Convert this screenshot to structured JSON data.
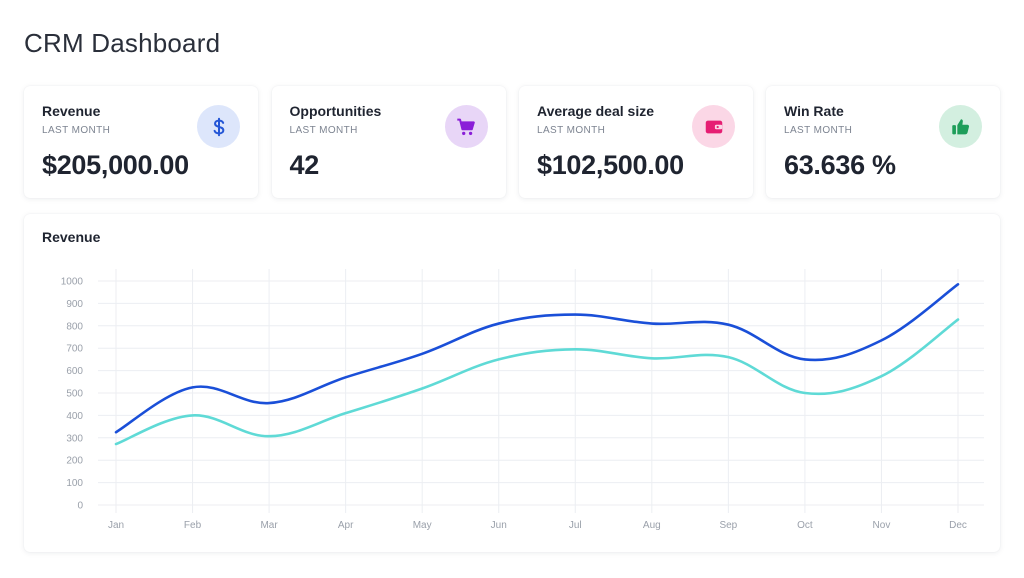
{
  "header": {
    "title": "CRM Dashboard"
  },
  "cards": [
    {
      "title": "Revenue",
      "subtitle": "LAST MONTH",
      "value": "$205,000.00",
      "icon": "dollar-icon",
      "icon_bg": "#dde6fb",
      "icon_color": "#2456d6"
    },
    {
      "title": "Opportunities",
      "subtitle": "LAST MONTH",
      "value": "42",
      "icon": "cart-icon",
      "icon_bg": "#e8d6f7",
      "icon_color": "#8a1ed8"
    },
    {
      "title": "Average deal size",
      "subtitle": "LAST MONTH",
      "value": "$102,500.00",
      "icon": "wallet-icon",
      "icon_bg": "#fbd7e6",
      "icon_color": "#e61e73"
    },
    {
      "title": "Win Rate",
      "subtitle": "LAST MONTH",
      "value": "63.636 %",
      "icon": "thumbs-up-icon",
      "icon_bg": "#d3efe0",
      "icon_color": "#1e9e5a"
    }
  ],
  "revenue_chart": {
    "title": "Revenue"
  },
  "chart_data": {
    "type": "line",
    "title": "Revenue",
    "categories": [
      "Jan",
      "Feb",
      "Mar",
      "Apr",
      "May",
      "Jun",
      "Jul",
      "Aug",
      "Sep",
      "Oct",
      "Nov",
      "Dec"
    ],
    "series": [
      {
        "values": [
          325,
          525,
          455,
          570,
          675,
          810,
          850,
          810,
          805,
          650,
          735,
          985
        ],
        "color": "#1a4fd8"
      },
      {
        "values": [
          272,
          400,
          307,
          410,
          520,
          650,
          695,
          655,
          660,
          500,
          575,
          828
        ],
        "color": "#5fdad6"
      }
    ],
    "ylim": [
      0,
      1000
    ],
    "yticks": [
      0,
      100,
      200,
      300,
      400,
      500,
      600,
      700,
      800,
      900,
      1000
    ],
    "grid": true,
    "smooth": true
  }
}
